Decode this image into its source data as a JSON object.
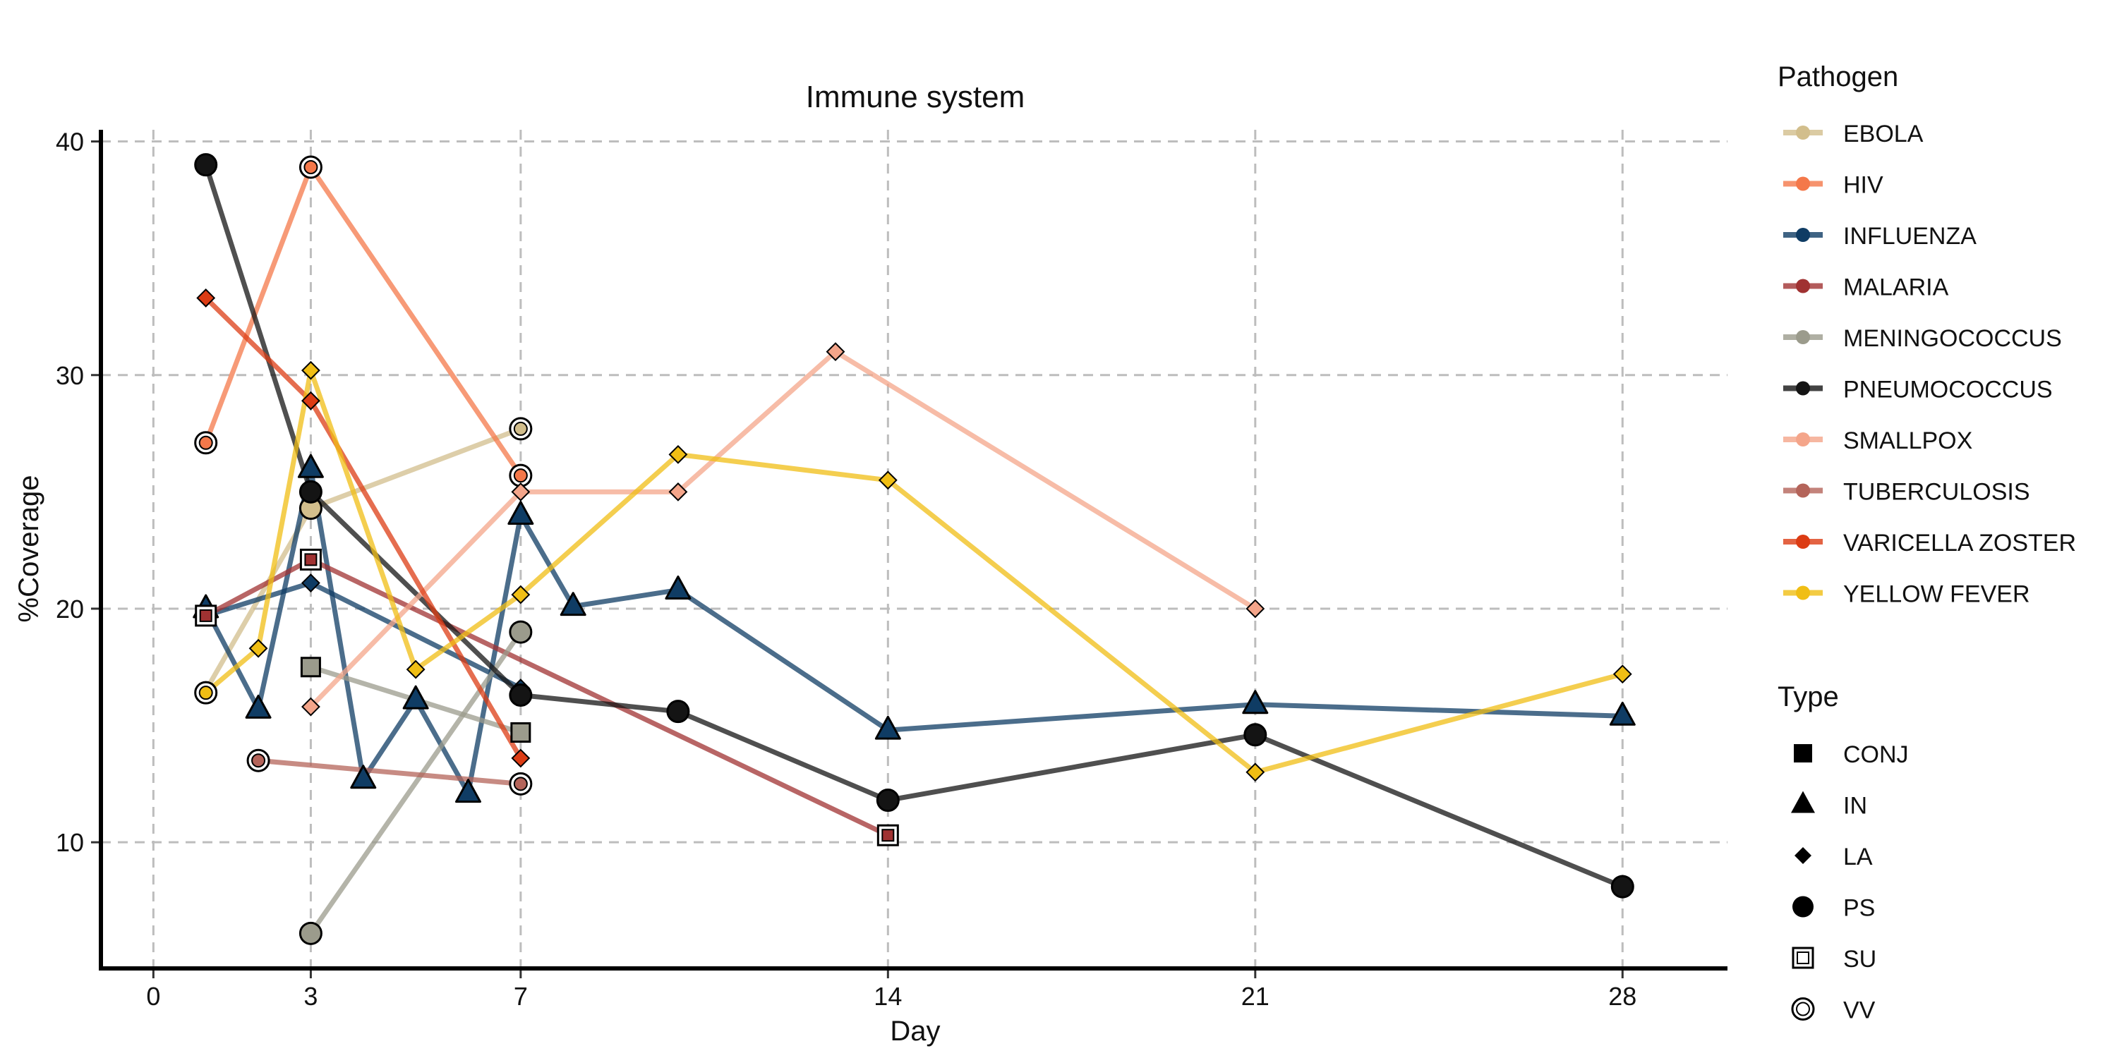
{
  "chart_data": {
    "type": "line",
    "title": "Immune system",
    "xlabel": "Day",
    "ylabel": "%Coverage",
    "xlim": [
      -1,
      30
    ],
    "ylim": [
      4.6,
      40.5
    ],
    "xticks": [
      0,
      3,
      7,
      14,
      21,
      28
    ],
    "yticks": [
      10,
      20,
      30,
      40
    ],
    "grid": true,
    "legend_position": "right",
    "legend_pathogen_title": "Pathogen",
    "legend_type_title": "Type",
    "types": [
      {
        "name": "CONJ",
        "shape": "square"
      },
      {
        "name": "IN",
        "shape": "triangle"
      },
      {
        "name": "LA",
        "shape": "diamond"
      },
      {
        "name": "PS",
        "shape": "circle"
      },
      {
        "name": "SU",
        "shape": "square-open"
      },
      {
        "name": "VV",
        "shape": "circle-open"
      }
    ],
    "series": [
      {
        "name": "EBOLA",
        "color": "#d2be8c",
        "points": [
          {
            "x": 1,
            "y": 16.5,
            "type": "LA"
          },
          {
            "x": 3,
            "y": 24.3,
            "type": "PS"
          },
          {
            "x": 7,
            "y": 27.7,
            "type": "VV"
          }
        ]
      },
      {
        "name": "HIV",
        "color": "#f4784a",
        "points": [
          {
            "x": 1,
            "y": 27.1,
            "type": "VV"
          },
          {
            "x": 3,
            "y": 38.9,
            "type": "VV"
          },
          {
            "x": 7,
            "y": 25.7,
            "type": "VV"
          }
        ]
      },
      {
        "name": "INFLUENZA",
        "color": "#0f3c64",
        "points": [
          {
            "x": 1,
            "y": 20.0,
            "type": "IN"
          },
          {
            "x": 2,
            "y": 15.7,
            "type": "IN"
          },
          {
            "x": 3,
            "y": 26.0,
            "type": "IN"
          },
          {
            "x": 4,
            "y": 12.7,
            "type": "IN"
          },
          {
            "x": 5,
            "y": 16.1,
            "type": "IN"
          },
          {
            "x": 6,
            "y": 12.1,
            "type": "IN"
          },
          {
            "x": 7,
            "y": 24.0,
            "type": "IN"
          },
          {
            "x": 8,
            "y": 20.1,
            "type": "IN"
          },
          {
            "x": 10,
            "y": 20.8,
            "type": "IN"
          },
          {
            "x": 14,
            "y": 14.8,
            "type": "IN"
          },
          {
            "x": 21,
            "y": 15.9,
            "type": "IN"
          },
          {
            "x": 28,
            "y": 15.4,
            "type": "IN"
          }
        ]
      },
      {
        "name": "INFLUENZA-LA",
        "color": "#0f3c64",
        "points": [
          {
            "x": 1,
            "y": 19.7,
            "type": "CONJ"
          },
          {
            "x": 3,
            "y": 21.1,
            "type": "LA"
          },
          {
            "x": 7,
            "y": 16.6,
            "type": "LA"
          }
        ]
      },
      {
        "name": "MALARIA",
        "color": "#a03232",
        "points": [
          {
            "x": 1,
            "y": 19.7,
            "type": "SU"
          },
          {
            "x": 3,
            "y": 22.1,
            "type": "SU"
          },
          {
            "x": 14,
            "y": 10.3,
            "type": "SU"
          }
        ]
      },
      {
        "name": "MENINGOCOCCUS",
        "color": "#9b9b8c",
        "points": [
          {
            "x": 3,
            "y": 17.5,
            "type": "CONJ"
          },
          {
            "x": 7,
            "y": 14.7,
            "type": "CONJ"
          }
        ]
      },
      {
        "name": "MENINGOCOCCUS-PS",
        "color": "#9b9b8c",
        "points": [
          {
            "x": 3,
            "y": 6.1,
            "type": "PS"
          },
          {
            "x": 7,
            "y": 19.0,
            "type": "PS"
          }
        ]
      },
      {
        "name": "PNEUMOCOCCUS",
        "color": "#141414",
        "points": [
          {
            "x": 1,
            "y": 39.0,
            "type": "PS"
          },
          {
            "x": 3,
            "y": 25.0,
            "type": "PS"
          },
          {
            "x": 7,
            "y": 16.3,
            "type": "PS"
          },
          {
            "x": 10,
            "y": 15.6,
            "type": "PS"
          },
          {
            "x": 14,
            "y": 11.8,
            "type": "PS"
          },
          {
            "x": 21,
            "y": 14.6,
            "type": "PS"
          },
          {
            "x": 28,
            "y": 8.1,
            "type": "PS"
          }
        ]
      },
      {
        "name": "SMALLPOX",
        "color": "#f4a58a",
        "points": [
          {
            "x": 3,
            "y": 15.8,
            "type": "LA"
          },
          {
            "x": 7,
            "y": 25.0,
            "type": "LA"
          },
          {
            "x": 10,
            "y": 25.0,
            "type": "LA"
          },
          {
            "x": 13,
            "y": 31.0,
            "type": "LA"
          },
          {
            "x": 21,
            "y": 20.0,
            "type": "LA"
          }
        ]
      },
      {
        "name": "TUBERCULOSIS",
        "color": "#b4645a",
        "points": [
          {
            "x": 2,
            "y": 13.5,
            "type": "VV"
          },
          {
            "x": 7,
            "y": 12.5,
            "type": "VV"
          }
        ]
      },
      {
        "name": "VARICELLA ZOSTER",
        "color": "#dc3c14",
        "points": [
          {
            "x": 1,
            "y": 33.3,
            "type": "LA"
          },
          {
            "x": 3,
            "y": 28.9,
            "type": "LA"
          },
          {
            "x": 7,
            "y": 13.6,
            "type": "LA"
          }
        ]
      },
      {
        "name": "YELLOW FEVER",
        "color": "#f0be14",
        "points": [
          {
            "x": 1,
            "y": 16.4,
            "type": "VV"
          },
          {
            "x": 2,
            "y": 18.3,
            "type": "LA"
          },
          {
            "x": 3,
            "y": 30.2,
            "type": "LA"
          },
          {
            "x": 5,
            "y": 17.4,
            "type": "LA"
          },
          {
            "x": 7,
            "y": 20.6,
            "type": "LA"
          },
          {
            "x": 10,
            "y": 26.6,
            "type": "LA"
          },
          {
            "x": 14,
            "y": 25.5,
            "type": "LA"
          },
          {
            "x": 21,
            "y": 13.0,
            "type": "LA"
          },
          {
            "x": 28,
            "y": 17.2,
            "type": "LA"
          }
        ]
      }
    ],
    "legend_entries": [
      {
        "name": "EBOLA",
        "color": "#d2be8c"
      },
      {
        "name": "HIV",
        "color": "#f4784a"
      },
      {
        "name": "INFLUENZA",
        "color": "#0f3c64"
      },
      {
        "name": "MALARIA",
        "color": "#a03232"
      },
      {
        "name": "MENINGOCOCCUS",
        "color": "#9b9b8c"
      },
      {
        "name": "PNEUMOCOCCUS",
        "color": "#141414"
      },
      {
        "name": "SMALLPOX",
        "color": "#f4a58a"
      },
      {
        "name": "TUBERCULOSIS",
        "color": "#b4645a"
      },
      {
        "name": "VARICELLA ZOSTER",
        "color": "#dc3c14"
      },
      {
        "name": "YELLOW FEVER",
        "color": "#f0be14"
      }
    ]
  }
}
